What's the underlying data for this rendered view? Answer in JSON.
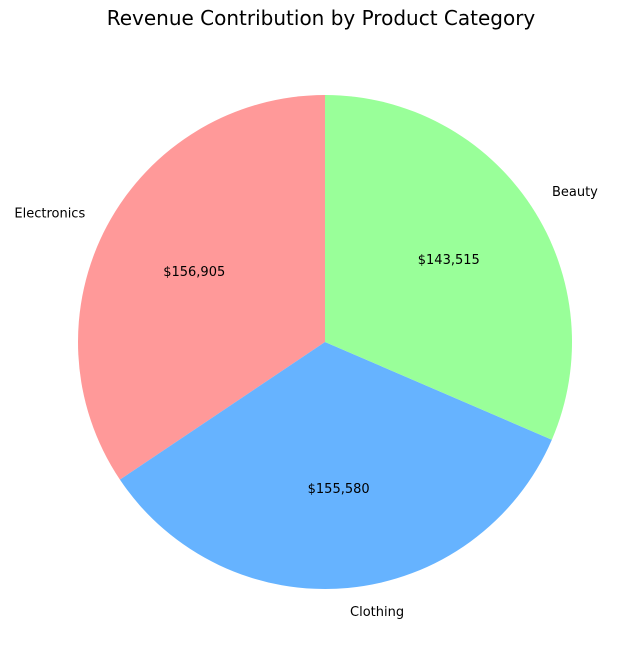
{
  "chart_data": {
    "type": "pie",
    "title": "Revenue Contribution by Product Category",
    "categories": [
      "Electronics",
      "Clothing",
      "Beauty"
    ],
    "values": [
      156905,
      155580,
      143515
    ],
    "value_labels": [
      "$156,905",
      "$155,580",
      "$143,515"
    ],
    "colors": [
      "#ff9999",
      "#66b3ff",
      "#99ff99"
    ],
    "start_angle_deg": 90,
    "direction": "counterclockwise",
    "legend": "none"
  }
}
